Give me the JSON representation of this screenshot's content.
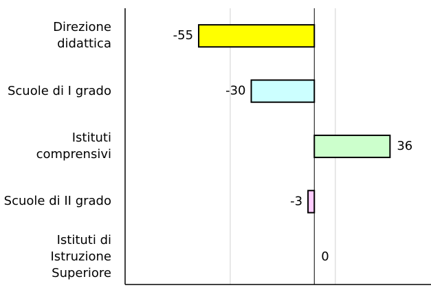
{
  "chart_data": {
    "type": "hbar",
    "categories": [
      "Direzione didattica",
      "Scuole di I grado",
      "Istituti comprensivi",
      "Scuole di II grado",
      "Istituti di Istruzione Superiore"
    ],
    "values": [
      -55,
      -30,
      36,
      -3,
      0
    ],
    "colors": [
      "#ffff00",
      "#ccffff",
      "#ccffcc",
      "#ffccff",
      "#ffcc99"
    ],
    "xlim": [
      -90,
      55.5
    ],
    "xticks": [
      -40,
      10
    ],
    "grid": true
  }
}
